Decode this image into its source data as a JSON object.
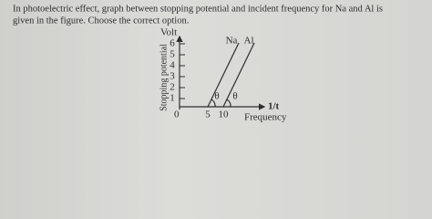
{
  "question": {
    "lines": [
      "In photoelectric effect, graph between stopping potential and incident frequency for Na and Al is",
      "given in the figure. Choose the correct option."
    ]
  },
  "figure": {
    "y_unit": "Volt",
    "y_label": "Stopping potential",
    "y_ticks": [
      6,
      5,
      4,
      3,
      2,
      1
    ],
    "origin": "0",
    "x_ticks": [
      5,
      10
    ],
    "x_unit": "1/t",
    "x_label": "Frequency",
    "line_labels": [
      "Na",
      "Al"
    ],
    "angle_labels": [
      "θ",
      "θ"
    ]
  }
}
